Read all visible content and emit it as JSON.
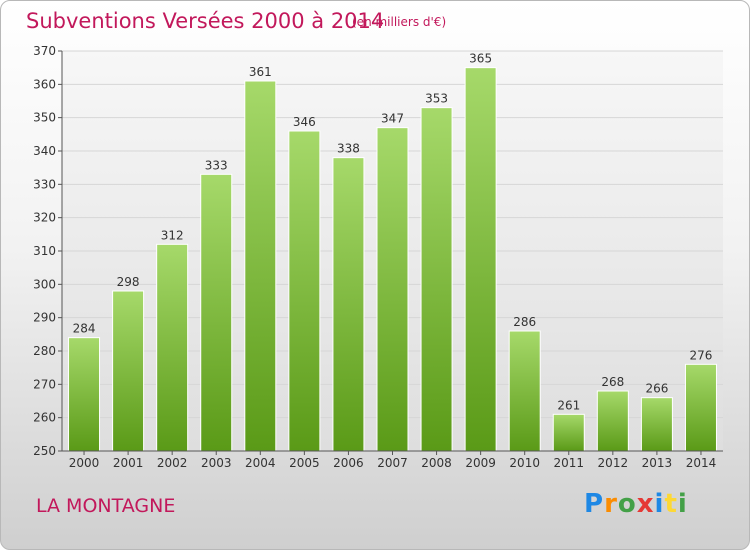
{
  "title": "Subventions Versées 2000 à 2014",
  "subtitle": "(en milliers d'€)",
  "commune": "LA MONTAGNE",
  "logo": {
    "text": "Proxiti",
    "letters": [
      {
        "char": "P",
        "color": "#1e88e5"
      },
      {
        "char": "r",
        "color": "#fb8c00"
      },
      {
        "char": "o",
        "color": "#43a047"
      },
      {
        "char": "x",
        "color": "#e53935"
      },
      {
        "char": "i",
        "color": "#1e88e5"
      },
      {
        "char": "t",
        "color": "#fdd835"
      },
      {
        "char": "i",
        "color": "#43a047"
      }
    ]
  },
  "colors": {
    "accent": "#c2185b",
    "bar_top": "#a6d96a",
    "bar_bottom": "#5a9a17",
    "grid": "#d6d6d6"
  },
  "chart_data": {
    "type": "bar",
    "title": "Subventions Versées 2000 à 2014",
    "subtitle": "(en milliers d'€)",
    "xlabel": "",
    "ylabel": "",
    "categories": [
      "2000",
      "2001",
      "2002",
      "2003",
      "2004",
      "2005",
      "2006",
      "2007",
      "2008",
      "2009",
      "2010",
      "2011",
      "2012",
      "2013",
      "2014"
    ],
    "values": [
      284,
      298,
      312,
      333,
      361,
      346,
      338,
      347,
      353,
      365,
      286,
      261,
      268,
      266,
      276
    ],
    "ylim": [
      250,
      370
    ],
    "yticks": [
      250,
      260,
      270,
      280,
      290,
      300,
      310,
      320,
      330,
      340,
      350,
      360,
      370
    ],
    "grid": true,
    "data_labels": true,
    "legend": "none"
  }
}
